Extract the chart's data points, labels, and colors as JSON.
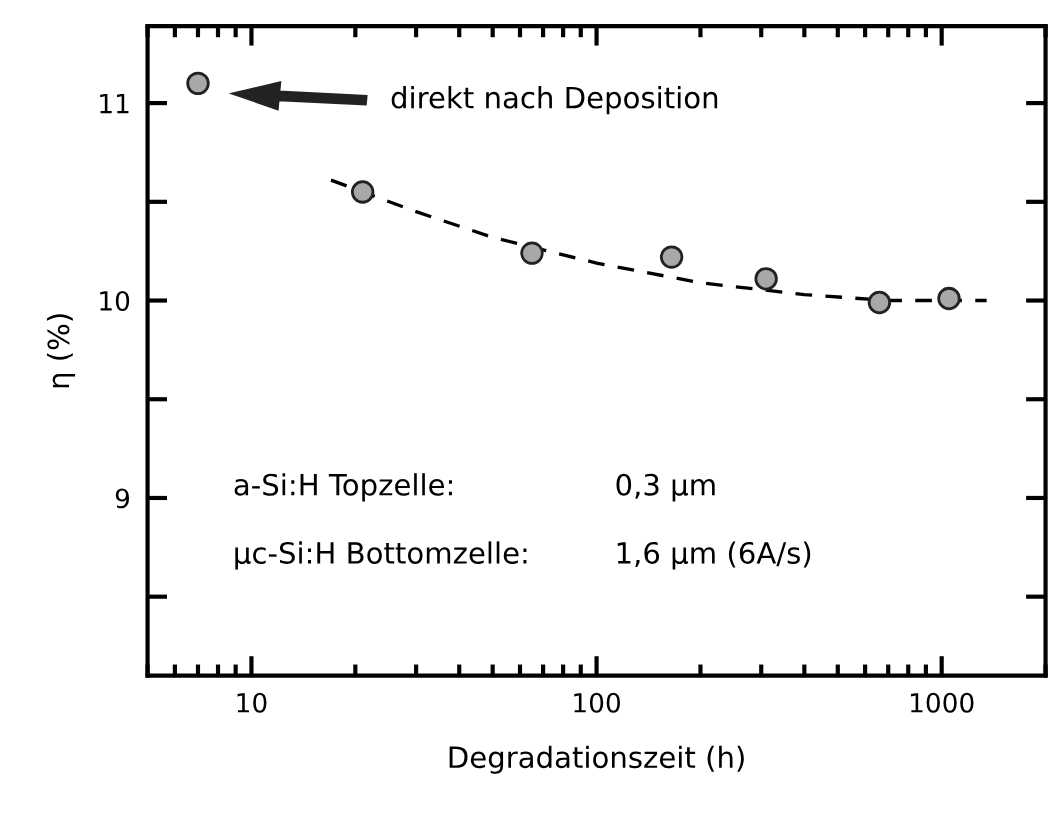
{
  "chart_data": {
    "type": "scatter",
    "xlabel": "Degradationszeit (h)",
    "ylabel": "η (%)",
    "log": "x",
    "xlim": [
      5,
      2000
    ],
    "xticks": [
      10,
      100,
      1000
    ],
    "ylim": [
      8.1,
      11.39
    ],
    "yticks": [
      {
        "value": 8.5,
        "label": null
      },
      9,
      {
        "value": 9.5,
        "label": null
      },
      10,
      {
        "value": 10.5,
        "label": null
      },
      11
    ],
    "grid": false,
    "legend": false,
    "series": [
      {
        "color": "#a8a8a8",
        "marker": "circle",
        "x": [
          7,
          21,
          65,
          165,
          310,
          660,
          1050
        ],
        "values": [
          11.1,
          10.55,
          10.24,
          10.22,
          10.11,
          9.99,
          10.01
        ]
      },
      {
        "type": "line",
        "color": "#000000",
        "marker": "none",
        "line_style": "dashed",
        "x": [
          17,
          30,
          50,
          100,
          200,
          400,
          700,
          1350
        ],
        "values": [
          10.61,
          10.45,
          10.32,
          10.19,
          10.09,
          10.03,
          10.0,
          10.0
        ]
      }
    ],
    "annotations": [
      "direkt nach Deposition",
      "a-Si:H Topzelle:",
      "0,3 μm",
      "μc-Si:H Bottomzelle:",
      "1,6 μm (6A/s)"
    ]
  }
}
